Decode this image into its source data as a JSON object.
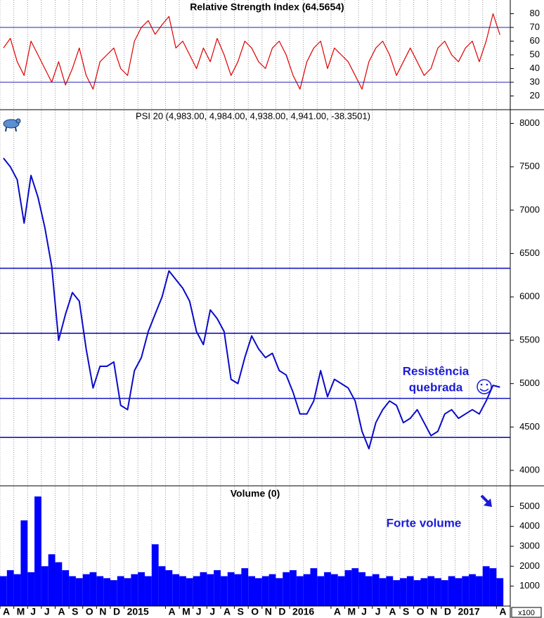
{
  "chart_data": [
    {
      "type": "line",
      "title": "Relative Strength Index (64.5654)",
      "color": "#e00000",
      "x": [
        0.25,
        0.75,
        1.25,
        1.75,
        2.25,
        2.75,
        3.25,
        3.75,
        4.25,
        4.75,
        5.25,
        5.75,
        6.25,
        6.75,
        7.25,
        7.75,
        8.25,
        8.75,
        9.25,
        9.75,
        10.25,
        10.75,
        11.25,
        11.75,
        12.25,
        12.75,
        13.25,
        13.75,
        14.25,
        14.75,
        15.25,
        15.75,
        16.25,
        16.75,
        17.25,
        17.75,
        18.25,
        18.75,
        19.25,
        19.75,
        20.25,
        20.75,
        21.25,
        21.75,
        22.25,
        22.75,
        23.25,
        23.75,
        24.25,
        24.75,
        25.25,
        25.75,
        26.25,
        26.75,
        27.25,
        27.75,
        28.25,
        28.75,
        29.25,
        29.75,
        30.25,
        30.75,
        31.25,
        31.75,
        32.25,
        32.75,
        33.25,
        33.75,
        34.25,
        34.75,
        35.25,
        35.75,
        36.25
      ],
      "values": [
        55,
        62,
        45,
        35,
        60,
        50,
        40,
        30,
        45,
        28,
        40,
        55,
        35,
        25,
        45,
        50,
        55,
        40,
        35,
        60,
        70,
        75,
        65,
        72,
        78,
        55,
        60,
        50,
        40,
        55,
        45,
        62,
        50,
        35,
        45,
        60,
        55,
        45,
        40,
        55,
        60,
        50,
        35,
        25,
        45,
        55,
        60,
        40,
        55,
        50,
        45,
        35,
        25,
        45,
        55,
        60,
        50,
        35,
        45,
        55,
        45,
        35,
        40,
        55,
        60,
        50,
        45,
        55,
        60,
        45,
        60,
        80,
        64.5654
      ],
      "xlim": [
        0,
        37
      ],
      "ylim": [
        10,
        90
      ],
      "yticks": [
        20,
        30,
        40,
        50,
        60,
        70,
        80
      ],
      "reference_lines": [
        70,
        30
      ],
      "reference_color": "#2020b0"
    },
    {
      "type": "line",
      "title": "PSI 20 (4,983.00, 4,984.00, 4,938.00, 4,941.00, -38.3501)",
      "color": "#0a0ac8",
      "x": [
        0.25,
        0.75,
        1.25,
        1.75,
        2.25,
        2.75,
        3.25,
        3.75,
        4.25,
        4.75,
        5.25,
        5.75,
        6.25,
        6.75,
        7.25,
        7.75,
        8.25,
        8.75,
        9.25,
        9.75,
        10.25,
        10.75,
        11.25,
        11.75,
        12.25,
        12.75,
        13.25,
        13.75,
        14.25,
        14.75,
        15.25,
        15.75,
        16.25,
        16.75,
        17.25,
        17.75,
        18.25,
        18.75,
        19.25,
        19.75,
        20.25,
        20.75,
        21.25,
        21.75,
        22.25,
        22.75,
        23.25,
        23.75,
        24.25,
        24.75,
        25.25,
        25.75,
        26.25,
        26.75,
        27.25,
        27.75,
        28.25,
        28.75,
        29.25,
        29.75,
        30.25,
        30.75,
        31.25,
        31.75,
        32.25,
        32.75,
        33.25,
        33.75,
        34.25,
        34.75,
        35.25,
        35.75,
        36.25
      ],
      "values": [
        7600,
        7500,
        7350,
        6850,
        7400,
        7150,
        6800,
        6350,
        5500,
        5800,
        6050,
        5950,
        5400,
        4950,
        5200,
        5200,
        5250,
        4750,
        4700,
        5150,
        5300,
        5600,
        5800,
        6000,
        6300,
        6200,
        6100,
        5950,
        5600,
        5450,
        5850,
        5750,
        5600,
        5050,
        5000,
        5300,
        5550,
        5400,
        5300,
        5350,
        5150,
        5100,
        4900,
        4650,
        4650,
        4800,
        5150,
        4850,
        5050,
        5000,
        4950,
        4800,
        4450,
        4250,
        4550,
        4700,
        4800,
        4750,
        4550,
        4600,
        4700,
        4550,
        4400,
        4450,
        4650,
        4700,
        4600,
        4650,
        4700,
        4650,
        4800,
        4980,
        4960
      ],
      "xlim": [
        0,
        37
      ],
      "ylim": [
        3830,
        8150
      ],
      "yticks": [
        4000,
        4500,
        5000,
        5500,
        6000,
        6500,
        7000,
        7500,
        8000
      ],
      "reference_lines": [
        6330,
        5580,
        4830,
        4380
      ],
      "reference_color": "#1515c0",
      "annotations": [
        "Resistência",
        "quebrada"
      ]
    },
    {
      "type": "bar",
      "title": "Volume (0)",
      "color": "#0000ff",
      "y_unit": "x100",
      "x": [
        0.25,
        0.75,
        1.25,
        1.75,
        2.25,
        2.75,
        3.25,
        3.75,
        4.25,
        4.75,
        5.25,
        5.75,
        6.25,
        6.75,
        7.25,
        7.75,
        8.25,
        8.75,
        9.25,
        9.75,
        10.25,
        10.75,
        11.25,
        11.75,
        12.25,
        12.75,
        13.25,
        13.75,
        14.25,
        14.75,
        15.25,
        15.75,
        16.25,
        16.75,
        17.25,
        17.75,
        18.25,
        18.75,
        19.25,
        19.75,
        20.25,
        20.75,
        21.25,
        21.75,
        22.25,
        22.75,
        23.25,
        23.75,
        24.25,
        24.75,
        25.25,
        25.75,
        26.25,
        26.75,
        27.25,
        27.75,
        28.25,
        28.75,
        29.25,
        29.75,
        30.25,
        30.75,
        31.25,
        31.75,
        32.25,
        32.75,
        33.25,
        33.75,
        34.25,
        34.75,
        35.25,
        35.75,
        36.25
      ],
      "values": [
        1500,
        1800,
        1600,
        4300,
        1700,
        5500,
        2000,
        2600,
        2200,
        1800,
        1500,
        1400,
        1600,
        1700,
        1500,
        1400,
        1300,
        1500,
        1400,
        1600,
        1700,
        1500,
        3100,
        2000,
        1800,
        1600,
        1500,
        1400,
        1500,
        1700,
        1600,
        1800,
        1500,
        1700,
        1600,
        1900,
        1500,
        1400,
        1500,
        1600,
        1400,
        1700,
        1800,
        1500,
        1600,
        1900,
        1500,
        1700,
        1600,
        1500,
        1800,
        1900,
        1700,
        1500,
        1600,
        1400,
        1500,
        1300,
        1400,
        1500,
        1300,
        1400,
        1500,
        1400,
        1300,
        1500,
        1400,
        1500,
        1600,
        1500,
        2000,
        1900,
        1400
      ],
      "xlim": [
        0,
        37
      ],
      "ylim": [
        0,
        6000
      ],
      "yticks": [
        1000,
        2000,
        3000,
        4000,
        5000
      ],
      "xticks": [
        {
          "value": 0,
          "label": "A"
        },
        {
          "value": 1,
          "label": "M"
        },
        {
          "value": 2,
          "label": "J"
        },
        {
          "value": 3,
          "label": "J"
        },
        {
          "value": 4,
          "label": "A"
        },
        {
          "value": 5,
          "label": "S"
        },
        {
          "value": 6,
          "label": "O"
        },
        {
          "value": 7,
          "label": "N"
        },
        {
          "value": 8,
          "label": "D"
        },
        {
          "value": 9,
          "label": "2015"
        },
        {
          "value": 12,
          "label": "A"
        },
        {
          "value": 13,
          "label": "M"
        },
        {
          "value": 14,
          "label": "J"
        },
        {
          "value": 15,
          "label": "J"
        },
        {
          "value": 16,
          "label": "A"
        },
        {
          "value": 17,
          "label": "S"
        },
        {
          "value": 18,
          "label": "O"
        },
        {
          "value": 19,
          "label": "N"
        },
        {
          "value": 20,
          "label": "D"
        },
        {
          "value": 21,
          "label": "2016"
        },
        {
          "value": 24,
          "label": "A"
        },
        {
          "value": 25,
          "label": "M"
        },
        {
          "value": 26,
          "label": "J"
        },
        {
          "value": 27,
          "label": "J"
        },
        {
          "value": 28,
          "label": "A"
        },
        {
          "value": 29,
          "label": "S"
        },
        {
          "value": 30,
          "label": "O"
        },
        {
          "value": 31,
          "label": "N"
        },
        {
          "value": 32,
          "label": "D"
        },
        {
          "value": 33,
          "label": "2017"
        },
        {
          "value": 36,
          "label": "A"
        }
      ],
      "annotations": [
        "Forte volume"
      ]
    }
  ]
}
